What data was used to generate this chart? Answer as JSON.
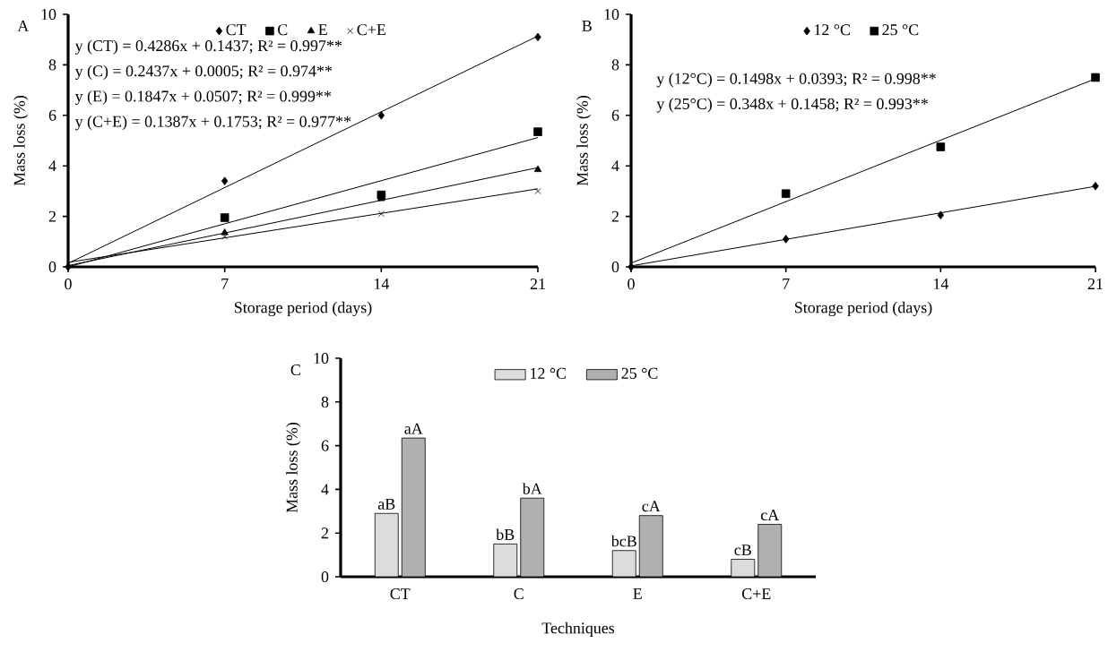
{
  "chart_data": [
    {
      "type": "scatter",
      "title": "A",
      "xlabel": "Storage period (days)",
      "ylabel": "Mass loss (%)",
      "xlim": [
        0,
        21
      ],
      "ylim": [
        0,
        10
      ],
      "xticks": [
        0,
        7,
        14,
        21
      ],
      "yticks": [
        0,
        2,
        4,
        6,
        8,
        10
      ],
      "legend": "top",
      "grid": false,
      "annotations": [
        "y (CT) = 0.4286x + 0.1437; R² = 0.997**",
        "y (C) = 0.2437x + 0.0005; R² = 0.974**",
        "y (E) = 0.1847x + 0.0507; R² = 0.999**",
        "y (C+E) = 0.1387x + 0.1753; R² = 0.977**"
      ],
      "series": [
        {
          "name": "CT",
          "color": "#000000",
          "marker": "diamond",
          "x": [
            0,
            7,
            14,
            21
          ],
          "values": [
            0,
            3.4,
            6.0,
            9.1
          ]
        },
        {
          "name": "C",
          "color": "#000000",
          "marker": "square",
          "x": [
            7,
            14,
            21
          ],
          "values": [
            1.95,
            2.85,
            5.35
          ]
        },
        {
          "name": "E",
          "color": "#000000",
          "marker": "triangle",
          "x": [
            7,
            14,
            21
          ],
          "values": [
            1.35,
            2.7,
            3.85
          ]
        },
        {
          "name": "C+E",
          "color": "#000000",
          "marker": "cross",
          "x": [
            7,
            14,
            21
          ],
          "values": [
            1.2,
            2.1,
            3.0
          ]
        },
        {
          "type": "line",
          "color": "#000000",
          "x": [
            0,
            21
          ],
          "values": [
            0.14,
            9.14
          ]
        },
        {
          "type": "line",
          "color": "#000000",
          "x": [
            0,
            21
          ],
          "values": [
            0,
            5.12
          ]
        },
        {
          "type": "line",
          "color": "#000000",
          "x": [
            0,
            21
          ],
          "values": [
            0.05,
            3.93
          ]
        },
        {
          "type": "line",
          "color": "#000000",
          "x": [
            0,
            21
          ],
          "values": [
            0.18,
            3.09
          ]
        }
      ]
    },
    {
      "type": "scatter",
      "title": "B",
      "xlabel": "Storage period (days)",
      "ylabel": "Mass loss (%)",
      "xlim": [
        0,
        21
      ],
      "ylim": [
        0,
        10
      ],
      "xticks": [
        0,
        7,
        14,
        21
      ],
      "yticks": [
        0,
        2,
        4,
        6,
        8,
        10
      ],
      "legend": "top",
      "grid": false,
      "annotations": [
        "y (12°C) = 0.1498x + 0.0393; R² = 0.998**",
        "y (25°C) = 0.348x + 0.1458; R² = 0.993**"
      ],
      "series": [
        {
          "name": "12 °C",
          "color": "#000000",
          "marker": "diamond",
          "x": [
            0,
            7,
            14,
            21
          ],
          "values": [
            0,
            1.1,
            2.05,
            3.2
          ]
        },
        {
          "name": "25 °C",
          "color": "#000000",
          "marker": "square",
          "x": [
            7,
            14,
            21
          ],
          "values": [
            2.9,
            4.75,
            7.5
          ]
        },
        {
          "type": "line",
          "color": "#000000",
          "x": [
            0,
            21
          ],
          "values": [
            0.04,
            3.19
          ]
        },
        {
          "type": "line",
          "color": "#000000",
          "x": [
            0,
            21
          ],
          "values": [
            0.15,
            7.45
          ]
        }
      ]
    },
    {
      "type": "bar",
      "title": "C",
      "xlabel": "Techniques",
      "ylabel": "Mass loss (%)",
      "ylim": [
        0,
        10
      ],
      "yticks": [
        0,
        2,
        4,
        6,
        8,
        10
      ],
      "legend": "top",
      "grid": false,
      "categories": [
        "CT",
        "C",
        "E",
        "C+E"
      ],
      "series": [
        {
          "name": "12 °C",
          "color": "#dcdcdc",
          "values": [
            2.9,
            1.5,
            1.2,
            0.8
          ],
          "value_labels": [
            "aB",
            "bB",
            "bcB",
            "cB"
          ]
        },
        {
          "name": "25 °C",
          "color": "#b0b0b0",
          "values": [
            6.35,
            3.6,
            2.8,
            2.4
          ],
          "value_labels": [
            "aA",
            "bA",
            "cA",
            "cA"
          ]
        }
      ]
    }
  ]
}
